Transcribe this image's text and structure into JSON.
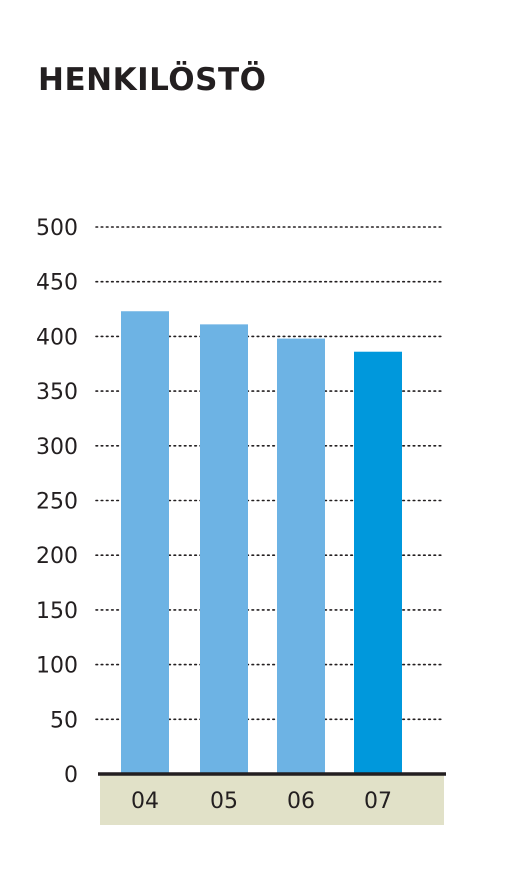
{
  "chart_data": {
    "type": "bar",
    "title": "HENKILÖSTÖ",
    "categories": [
      "04",
      "05",
      "06",
      "07"
    ],
    "values": [
      423,
      411,
      398,
      386
    ],
    "ylim": [
      0,
      500
    ],
    "yticks": [
      0,
      50,
      100,
      150,
      200,
      250,
      300,
      350,
      400,
      450,
      500
    ],
    "ytick_labels": [
      "0",
      "50",
      "100",
      "150",
      "200",
      "250",
      "300",
      "350",
      "400",
      "450",
      "500"
    ],
    "grid": "dotted horizontal",
    "colors": {
      "bar": "#6db3e4",
      "highlight_bar": "#0098dc",
      "category_band": "#e1e1c8",
      "axis": "#231f20",
      "grid": "#231f20"
    },
    "highlight_index": 3
  }
}
